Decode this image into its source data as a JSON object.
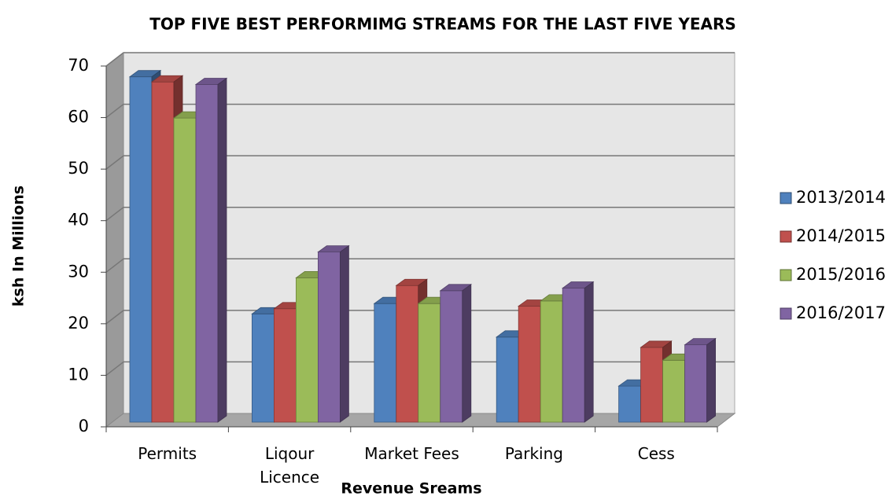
{
  "chart_data": {
    "type": "bar3d",
    "title": "TOP FIVE BEST PERFORMIMG STREAMS FOR THE LAST FIVE YEARS",
    "xlabel": "Revenue Sreams",
    "ylabel": "ksh In Millions",
    "categories": [
      "Permits",
      "Liqour Licence",
      "Market Fees",
      "Parking",
      "Cess"
    ],
    "series": [
      {
        "name": "2013/2014",
        "color": "#4f81bd",
        "values": [
          67,
          21,
          23,
          16.5,
          7
        ]
      },
      {
        "name": "2014/2015",
        "color": "#c0504d",
        "values": [
          66,
          22,
          26.5,
          22.5,
          14.5
        ]
      },
      {
        "name": "2015/2016",
        "color": "#9bbb59",
        "values": [
          59,
          28,
          23,
          23.5,
          12
        ]
      },
      {
        "name": "2016/2017",
        "color": "#8064a2",
        "values": [
          65.5,
          33,
          25.5,
          26,
          15
        ]
      }
    ],
    "ylim": [
      0,
      70
    ],
    "yticks": [
      0,
      10,
      20,
      30,
      40,
      50,
      60,
      70
    ],
    "grid": true,
    "legend": "right"
  }
}
